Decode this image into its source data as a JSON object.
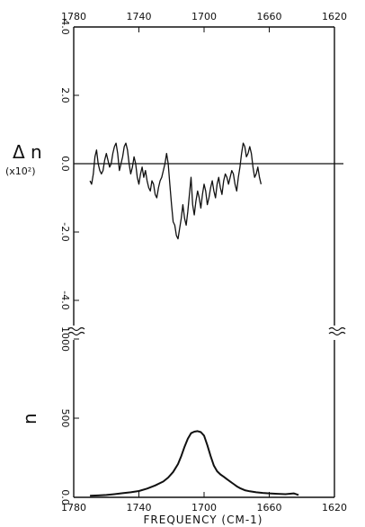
{
  "chart_data": [
    {
      "type": "line",
      "panel": "difference",
      "x_top_ticks": [
        "1780",
        "1740",
        "1700",
        "1660",
        "1620"
      ],
      "xlim": [
        1780,
        1620
      ],
      "ylabel": "Δ n",
      "ylabel_scale": "(x10²)",
      "y_ticks": [
        "4.0",
        "2.0",
        "0.0",
        "-2.0",
        "-4.0"
      ],
      "ylim": [
        -4.5,
        4.0
      ],
      "series": [
        {
          "x": [
            1770,
            1769,
            1768,
            1767,
            1766,
            1765,
            1764,
            1763,
            1762,
            1761,
            1760,
            1759,
            1758,
            1757,
            1756,
            1755,
            1754,
            1753,
            1752,
            1751,
            1750,
            1749,
            1748,
            1747,
            1746,
            1745,
            1744,
            1743,
            1742,
            1741,
            1740,
            1739,
            1738,
            1737,
            1736,
            1735,
            1734,
            1733,
            1732,
            1731,
            1730,
            1729,
            1728,
            1727,
            1726,
            1725,
            1724,
            1723,
            1722,
            1721,
            1720,
            1719,
            1718,
            1717,
            1716,
            1715,
            1714,
            1713,
            1712,
            1711,
            1710,
            1709,
            1708,
            1707,
            1706,
            1705,
            1704,
            1703,
            1702,
            1701,
            1700,
            1699,
            1698,
            1697,
            1696,
            1695,
            1694,
            1693,
            1692,
            1691,
            1690,
            1689,
            1688,
            1687,
            1686,
            1685,
            1684,
            1683,
            1682,
            1681,
            1680,
            1679,
            1678,
            1677,
            1676,
            1675,
            1674,
            1673,
            1672,
            1671,
            1670,
            1669,
            1668,
            1667,
            1666,
            1665
          ],
          "y": [
            -0.5,
            -0.6,
            -0.3,
            0.2,
            0.4,
            0.0,
            -0.2,
            -0.3,
            -0.2,
            0.1,
            0.3,
            0.1,
            -0.1,
            0.0,
            0.3,
            0.5,
            0.6,
            0.3,
            -0.2,
            0.0,
            0.2,
            0.5,
            0.6,
            0.4,
            0.0,
            -0.3,
            -0.1,
            0.2,
            0.0,
            -0.4,
            -0.6,
            -0.3,
            -0.1,
            -0.4,
            -0.2,
            -0.5,
            -0.7,
            -0.8,
            -0.5,
            -0.6,
            -0.9,
            -1.0,
            -0.7,
            -0.5,
            -0.4,
            -0.2,
            0.0,
            0.3,
            0.0,
            -0.6,
            -1.2,
            -1.7,
            -1.8,
            -2.1,
            -2.2,
            -1.9,
            -1.6,
            -1.2,
            -1.6,
            -1.8,
            -1.4,
            -0.9,
            -0.4,
            -1.2,
            -1.5,
            -1.1,
            -0.8,
            -1.0,
            -1.3,
            -0.9,
            -0.6,
            -0.8,
            -1.2,
            -1.0,
            -0.7,
            -0.5,
            -0.8,
            -1.0,
            -0.6,
            -0.4,
            -0.7,
            -0.9,
            -0.5,
            -0.3,
            -0.4,
            -0.6,
            -0.4,
            -0.2,
            -0.3,
            -0.6,
            -0.8,
            -0.4,
            -0.1,
            0.3,
            0.6,
            0.5,
            0.2,
            0.3,
            0.5,
            0.3,
            -0.1,
            -0.4,
            -0.3,
            -0.1,
            -0.4,
            -0.6
          ]
        }
      ]
    },
    {
      "type": "line",
      "panel": "absorbance",
      "xlabel": "FREQUENCY (CM-1)",
      "x_ticks": [
        "1780",
        "1740",
        "1700",
        "1660",
        "1620"
      ],
      "xlim": [
        1780,
        1620
      ],
      "ylabel": "n",
      "y_ticks": [
        "0.0",
        "500",
        "1000"
      ],
      "ylim": [
        0,
        1200
      ],
      "series": [
        {
          "x": [
            1770,
            1765,
            1760,
            1755,
            1750,
            1745,
            1740,
            1735,
            1730,
            1725,
            1722,
            1719,
            1716,
            1714,
            1712,
            1710,
            1708,
            1706,
            1704,
            1702,
            1700,
            1698,
            1696,
            1694,
            1692,
            1690,
            1688,
            1686,
            1684,
            1682,
            1680,
            1678,
            1675,
            1672,
            1668,
            1664,
            1660,
            1655,
            1650,
            1645,
            1642
          ],
          "y": [
            10,
            12,
            15,
            20,
            26,
            32,
            40,
            55,
            75,
            100,
            125,
            160,
            210,
            260,
            320,
            370,
            405,
            415,
            418,
            412,
            390,
            330,
            260,
            200,
            165,
            145,
            130,
            115,
            100,
            85,
            70,
            58,
            45,
            38,
            32,
            28,
            25,
            22,
            20,
            25,
            15
          ]
        }
      ]
    }
  ]
}
